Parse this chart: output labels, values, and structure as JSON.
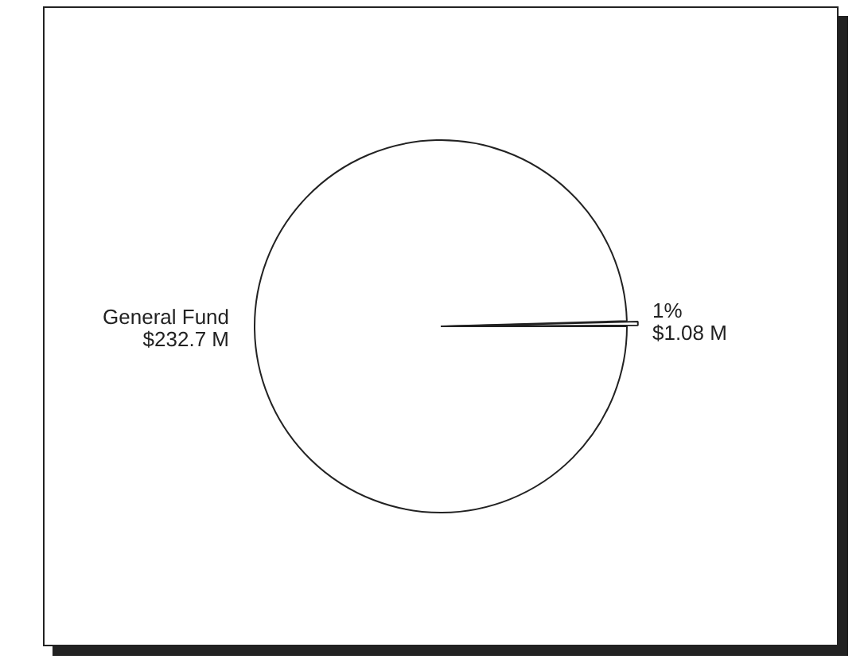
{
  "chart_data": {
    "type": "pie",
    "categories": [
      "General Fund",
      null
    ],
    "values": [
      232.7,
      1.08
    ],
    "colors": [
      "#ffffff",
      "#ffffff"
    ],
    "value_labels": [
      "$232.7 M",
      "1%\n$1.08 M"
    ],
    "legend": false
  }
}
